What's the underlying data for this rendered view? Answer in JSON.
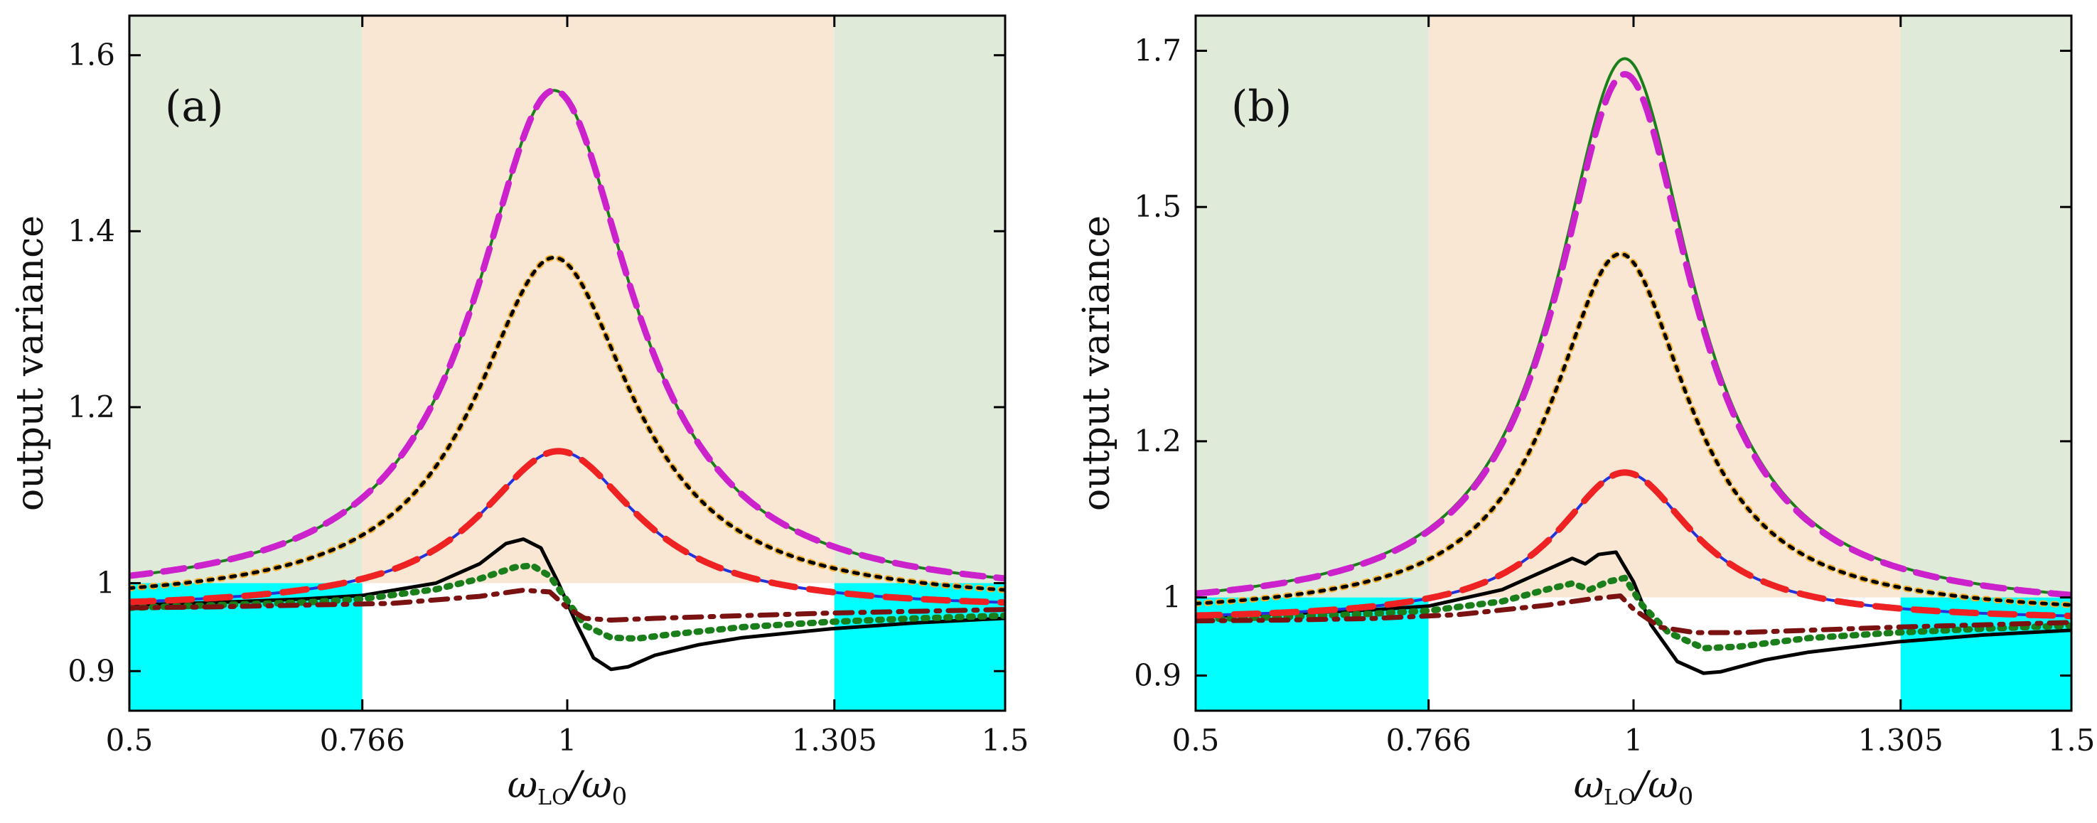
{
  "chart_data": [
    {
      "type": "line",
      "panel_label": "(a)",
      "xlabel": "ω_LO/ω_0",
      "ylabel": "output variance",
      "xlim": [
        0.5,
        1.5
      ],
      "ylim": [
        0.855,
        1.645
      ],
      "ytick_values": [
        0.9,
        1,
        1.2,
        1.4,
        1.6
      ],
      "ytick_labels": [
        "0.9",
        "1",
        "1.2",
        "1.4",
        "1.6"
      ],
      "xtick_values": [
        0.5,
        0.766,
        1,
        1.305,
        1.5
      ],
      "xtick_labels": [
        "0.5",
        "0.766",
        "1",
        "1.305",
        "1.5"
      ],
      "regions": {
        "boundaries": [
          0.766,
          1.305
        ],
        "threshold": 1.0,
        "outer_upper_color": "#dfead9",
        "inner_upper_color": "#f9e7d4",
        "outer_lower_color": "#00ffff",
        "inner_lower_color": "#ffffff"
      },
      "lorentz_series": [
        {
          "name": "green solid",
          "color": "#1a7f1a",
          "dash": "",
          "width": 4,
          "peak": 1.56,
          "center": 0.985,
          "width_param": 0.11,
          "base": 0.98
        },
        {
          "name": "magenta dashed",
          "color": "#cc22cc",
          "dash": "30 18",
          "width": 9,
          "peak": 1.56,
          "center": 0.985,
          "width_param": 0.11,
          "base": 0.98
        },
        {
          "name": "orange dotted",
          "color": "#f5b030",
          "dash": "4 12",
          "width": 9,
          "peak": 1.37,
          "center": 0.985,
          "width_param": 0.11,
          "base": 0.975
        },
        {
          "name": "black dotted",
          "color": "#000000",
          "dash": "6 10",
          "width": 5,
          "peak": 1.37,
          "center": 0.985,
          "width_param": 0.11,
          "base": 0.975
        },
        {
          "name": "blue solid",
          "color": "#2233dd",
          "dash": "",
          "width": 4,
          "peak": 1.15,
          "center": 0.99,
          "width_param": 0.11,
          "base": 0.97
        },
        {
          "name": "red dashed",
          "color": "#ee2222",
          "dash": "34 20",
          "width": 9,
          "peak": 1.15,
          "center": 0.99,
          "width_param": 0.11,
          "base": 0.97
        }
      ],
      "point_series": [
        {
          "name": "black solid dispersive",
          "color": "#000000",
          "dash": "",
          "width": 5,
          "x": [
            0.5,
            0.6,
            0.7,
            0.766,
            0.85,
            0.9,
            0.93,
            0.95,
            0.97,
            0.99,
            1.01,
            1.03,
            1.05,
            1.07,
            1.1,
            1.15,
            1.2,
            1.3,
            1.4,
            1.5
          ],
          "y": [
            0.975,
            0.978,
            0.982,
            0.986,
            1.0,
            1.022,
            1.045,
            1.05,
            1.04,
            1.0,
            0.955,
            0.915,
            0.902,
            0.905,
            0.918,
            0.93,
            0.938,
            0.948,
            0.955,
            0.96
          ]
        },
        {
          "name": "green dotted",
          "color": "#1a7f1a",
          "dash": "5 11",
          "width": 9,
          "x": [
            0.5,
            0.6,
            0.7,
            0.766,
            0.85,
            0.9,
            0.94,
            0.96,
            0.98,
            1.0,
            1.02,
            1.05,
            1.08,
            1.12,
            1.2,
            1.3,
            1.4,
            1.5
          ],
          "y": [
            0.972,
            0.975,
            0.978,
            0.982,
            0.993,
            1.005,
            1.018,
            1.02,
            1.008,
            0.98,
            0.952,
            0.938,
            0.937,
            0.942,
            0.95,
            0.956,
            0.96,
            0.963
          ]
        },
        {
          "name": "maroon dash-dot",
          "color": "#7a1212",
          "dash": "24 12 5 12",
          "width": 7,
          "x": [
            0.5,
            0.6,
            0.7,
            0.8,
            0.9,
            0.95,
            0.98,
            1.0,
            1.02,
            1.05,
            1.1,
            1.2,
            1.3,
            1.4,
            1.5
          ],
          "y": [
            0.972,
            0.973,
            0.975,
            0.977,
            0.985,
            0.992,
            0.99,
            0.972,
            0.96,
            0.958,
            0.96,
            0.963,
            0.966,
            0.968,
            0.97
          ]
        }
      ]
    },
    {
      "type": "line",
      "panel_label": "(b)",
      "xlabel": "ω_LO/ω_0",
      "ylabel": "output variance",
      "xlim": [
        0.5,
        1.5
      ],
      "ylim": [
        0.855,
        1.745
      ],
      "ytick_values": [
        0.9,
        1,
        1.2,
        1.5,
        1.7
      ],
      "ytick_labels": [
        "0.9",
        "1",
        "1.2",
        "1.5",
        "1.7"
      ],
      "xtick_values": [
        0.5,
        0.766,
        1,
        1.305,
        1.5
      ],
      "xtick_labels": [
        "0.5",
        "0.766",
        "1",
        "1.305",
        "1.5"
      ],
      "regions": {
        "boundaries": [
          0.766,
          1.305
        ],
        "threshold": 1.0,
        "outer_upper_color": "#dfead9",
        "inner_upper_color": "#f9e7d4",
        "outer_lower_color": "#00ffff",
        "inner_lower_color": "#ffffff"
      },
      "lorentz_series": [
        {
          "name": "green solid",
          "color": "#1a7f1a",
          "dash": "",
          "width": 4,
          "peak": 1.69,
          "center": 0.99,
          "width_param": 0.095,
          "base": 0.98
        },
        {
          "name": "magenta dashed",
          "color": "#cc22cc",
          "dash": "30 18",
          "width": 9,
          "peak": 1.67,
          "center": 0.99,
          "width_param": 0.095,
          "base": 0.98
        },
        {
          "name": "orange dotted",
          "color": "#f5b030",
          "dash": "4 12",
          "width": 9,
          "peak": 1.44,
          "center": 0.985,
          "width_param": 0.095,
          "base": 0.975
        },
        {
          "name": "black dotted",
          "color": "#000000",
          "dash": "6 10",
          "width": 5,
          "peak": 1.44,
          "center": 0.985,
          "width_param": 0.095,
          "base": 0.975
        },
        {
          "name": "blue solid",
          "color": "#2233dd",
          "dash": "",
          "width": 4,
          "peak": 1.16,
          "center": 0.99,
          "width_param": 0.095,
          "base": 0.97
        },
        {
          "name": "red dashed",
          "color": "#ee2222",
          "dash": "34 20",
          "width": 9,
          "peak": 1.16,
          "center": 0.99,
          "width_param": 0.095,
          "base": 0.97
        }
      ],
      "point_series": [
        {
          "name": "black solid dispersive",
          "color": "#000000",
          "dash": "",
          "width": 5,
          "x": [
            0.5,
            0.6,
            0.7,
            0.766,
            0.85,
            0.9,
            0.93,
            0.945,
            0.96,
            0.98,
            1.0,
            1.02,
            1.05,
            1.08,
            1.1,
            1.15,
            1.2,
            1.3,
            1.4,
            1.5
          ],
          "y": [
            0.975,
            0.979,
            0.984,
            0.989,
            1.01,
            1.035,
            1.05,
            1.043,
            1.055,
            1.058,
            1.02,
            0.965,
            0.918,
            0.903,
            0.905,
            0.92,
            0.93,
            0.943,
            0.952,
            0.958
          ]
        },
        {
          "name": "green dotted",
          "color": "#1a7f1a",
          "dash": "5 11",
          "width": 9,
          "x": [
            0.5,
            0.6,
            0.7,
            0.766,
            0.85,
            0.9,
            0.93,
            0.95,
            0.97,
            0.99,
            1.01,
            1.04,
            1.08,
            1.12,
            1.2,
            1.3,
            1.4,
            1.5
          ],
          "y": [
            0.972,
            0.975,
            0.979,
            0.983,
            0.995,
            1.01,
            1.018,
            1.01,
            1.02,
            1.025,
            0.99,
            0.955,
            0.935,
            0.937,
            0.948,
            0.955,
            0.96,
            0.964
          ]
        },
        {
          "name": "maroon dash-dot",
          "color": "#7a1212",
          "dash": "24 12 5 12",
          "width": 7,
          "x": [
            0.5,
            0.6,
            0.7,
            0.8,
            0.9,
            0.95,
            0.985,
            1.0,
            1.03,
            1.07,
            1.12,
            1.2,
            1.3,
            1.4,
            1.5
          ],
          "y": [
            0.97,
            0.971,
            0.973,
            0.978,
            0.99,
            0.998,
            1.002,
            0.985,
            0.962,
            0.955,
            0.955,
            0.958,
            0.962,
            0.965,
            0.968
          ]
        }
      ]
    }
  ]
}
